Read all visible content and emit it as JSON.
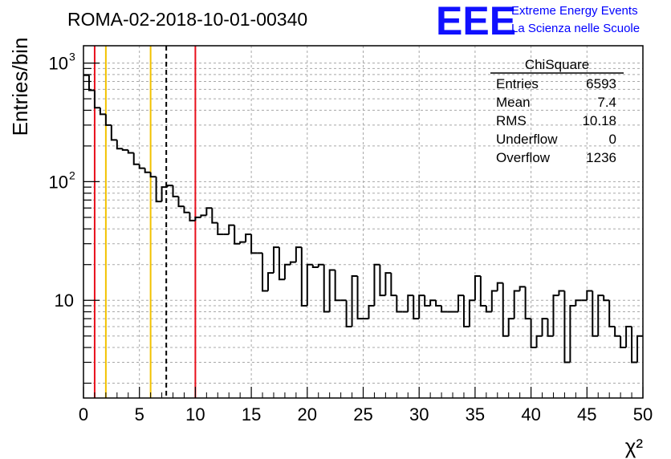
{
  "header": {
    "title": "ROMA-02-2018-10-01-00340",
    "logo_text": "EEE",
    "logo_line1": "Extreme Energy Events",
    "logo_line2": "La Scienza nelle Scuole"
  },
  "stats_box": {
    "name": "ChiSquare",
    "rows": [
      {
        "label": "Entries",
        "value": "6593"
      },
      {
        "label": "Mean",
        "value": "7.4"
      },
      {
        "label": "RMS",
        "value": "10.18"
      },
      {
        "label": "Underflow",
        "value": "0"
      },
      {
        "label": "Overflow",
        "value": "1236"
      }
    ]
  },
  "colors": {
    "red_line": "#e8101c",
    "yellow_line": "#f2c200",
    "mean_line": "#000000",
    "grid": "#a8a8a8",
    "histogram": "#000000"
  },
  "chart_data": {
    "type": "histogram",
    "xlabel": "χ²",
    "ylabel": "Entries/bin",
    "xlim": [
      0,
      50
    ],
    "ylim": [
      1.5,
      1400
    ],
    "y_scale": "log",
    "grid": true,
    "x_ticks": [
      0,
      5,
      10,
      15,
      20,
      25,
      30,
      35,
      40,
      45,
      50
    ],
    "x_tick_labels": [
      "0",
      "5",
      "10",
      "15",
      "20",
      "25",
      "30",
      "35",
      "40",
      "45",
      "50"
    ],
    "y_ticks": [
      10,
      100,
      1000
    ],
    "y_tick_labels": [
      "10",
      "10",
      "10"
    ],
    "y_tick_exponents": [
      "",
      "2",
      "3"
    ],
    "bin_width": 0.5,
    "bin_start": 0,
    "values": [
      790,
      590,
      420,
      370,
      300,
      225,
      190,
      185,
      175,
      140,
      130,
      120,
      110,
      68,
      90,
      93,
      75,
      62,
      55,
      47,
      50,
      52,
      60,
      45,
      36,
      36,
      43,
      30,
      31,
      36,
      25,
      25,
      12,
      17,
      28,
      15,
      20,
      21,
      28,
      9,
      20,
      19,
      20,
      8,
      18,
      10,
      10,
      6,
      16,
      7,
      7,
      9,
      20,
      11,
      17,
      11,
      8,
      8,
      11,
      7,
      11,
      9,
      10,
      9,
      8,
      8,
      8,
      11,
      6,
      10,
      16,
      9,
      8,
      12,
      14,
      5,
      7,
      12,
      13,
      7,
      4,
      5,
      7,
      5,
      11,
      12,
      3,
      9,
      10,
      10,
      12,
      5,
      11,
      10,
      6,
      5,
      4,
      6,
      3,
      5
    ],
    "vertical_lines": [
      {
        "x": 1.0,
        "color": "red",
        "style": "solid"
      },
      {
        "x": 2.0,
        "color": "yellow",
        "style": "solid"
      },
      {
        "x": 6.0,
        "color": "yellow",
        "style": "solid"
      },
      {
        "x": 7.4,
        "color": "black",
        "style": "dashed"
      },
      {
        "x": 10.0,
        "color": "red",
        "style": "solid"
      }
    ]
  }
}
